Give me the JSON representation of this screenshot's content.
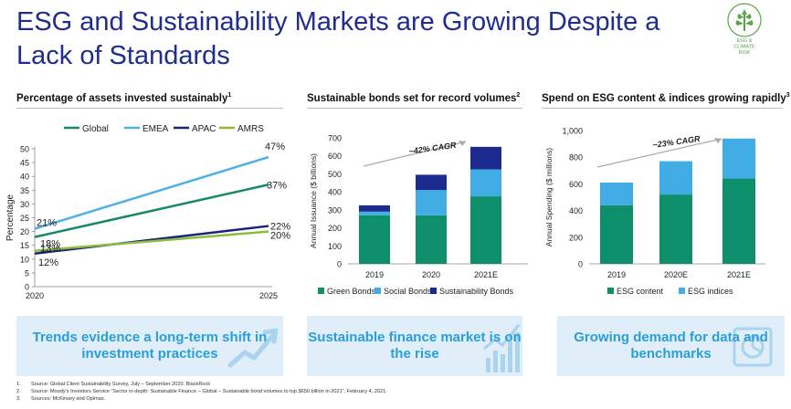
{
  "title": "ESG and Sustainability Markets are Growing Despite a Lack of Standards",
  "logo_text": [
    "ESG &",
    "CLIMATE",
    "RISK"
  ],
  "colors": {
    "title": "#1f2d8f",
    "global": "#17886a",
    "emea": "#4db0e6",
    "apac": "#19237a",
    "amrs": "#8cbd3a",
    "green": "#0e8f6b",
    "social": "#42ade5",
    "sust": "#1c2a8f",
    "banner_bg": "#dfeef8",
    "banner_text": "#2b9ed8"
  },
  "sections": [
    {
      "title": "Percentage of assets invested sustainably",
      "sup": "1"
    },
    {
      "title": "Sustainable bonds set for record volumes",
      "sup": "2"
    },
    {
      "title": "Spend on ESG content & indices growing rapidly",
      "sup": "3"
    }
  ],
  "chart_data": [
    {
      "type": "line",
      "title": "Percentage of assets invested sustainably",
      "x": [
        "2020",
        "2025"
      ],
      "ylabel": "Percentage",
      "ylim": [
        0,
        50
      ],
      "yticks": [
        "0",
        "5",
        "10",
        "15",
        "20",
        "25",
        "30",
        "35",
        "40",
        "45",
        "50"
      ],
      "series": [
        {
          "name": "Global",
          "values": [
            18,
            37
          ],
          "labels": [
            "18%",
            "37%"
          ]
        },
        {
          "name": "EMEA",
          "values": [
            21,
            47
          ],
          "labels": [
            "21%",
            "47%"
          ]
        },
        {
          "name": "APAC",
          "values": [
            12,
            22
          ],
          "labels": [
            "12%",
            "22%"
          ]
        },
        {
          "name": "AMRS",
          "values": [
            13,
            20
          ],
          "labels": [
            "13%",
            "20%"
          ]
        }
      ]
    },
    {
      "type": "bar",
      "stacked": true,
      "title": "Sustainable bonds set for record volumes",
      "categories": [
        "2019",
        "2020",
        "2021E"
      ],
      "ylabel": "Annual Issuance ($ billions)",
      "ylim": [
        0,
        700
      ],
      "yticks": [
        "0",
        "100",
        "200",
        "300",
        "400",
        "500",
        "600",
        "700"
      ],
      "annotation": "~42% CAGR",
      "series": [
        {
          "name": "Green Bonds",
          "values": [
            270,
            270,
            375
          ]
        },
        {
          "name": "Social Bonds",
          "values": [
            20,
            140,
            150
          ]
        },
        {
          "name": "Sustainability Bonds",
          "values": [
            35,
            85,
            125
          ]
        }
      ]
    },
    {
      "type": "bar",
      "stacked": true,
      "title": "Spend on ESG content & indices growing rapidly",
      "categories": [
        "2019",
        "2020E",
        "2021E"
      ],
      "ylabel": "Annual Spending ($ millions)",
      "ylim": [
        0,
        1000
      ],
      "yticks": [
        "0",
        "200",
        "400",
        "600",
        "800",
        "1,000"
      ],
      "annotation": "~23% CAGR",
      "series": [
        {
          "name": "ESG content",
          "values": [
            440,
            520,
            640
          ]
        },
        {
          "name": "ESG indices",
          "values": [
            170,
            250,
            300
          ]
        }
      ]
    }
  ],
  "banners": [
    {
      "text": "Trends evidence a long-term shift in investment practices"
    },
    {
      "text": "Sustainable finance market is on the rise"
    },
    {
      "text": "Growing demand for data and benchmarks"
    }
  ],
  "footnotes": [
    {
      "num": "1.",
      "text": "Source: Global Client Sustainability Survey, July – September 2020. BlackRock"
    },
    {
      "num": "2.",
      "text": "Source: Moody’s Investors Service “Sector in-depth: Sustainable Finance – Global – Sustainable bond volumes to top $650 billion in 2021”, February 4, 2021."
    },
    {
      "num": "3.",
      "text": "Sources: McKinsey and Opimas."
    }
  ]
}
